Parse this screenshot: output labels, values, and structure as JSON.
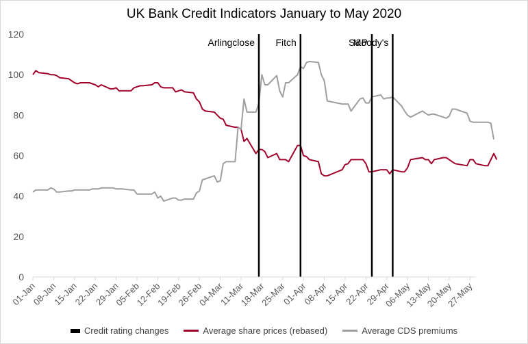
{
  "chart_data": {
    "type": "line",
    "title": "UK Bank Credit Indicators January to May 2020",
    "ylim": [
      0,
      120
    ],
    "yticks": [
      "0",
      "20",
      "40",
      "60",
      "80",
      "100",
      "120"
    ],
    "x_start": "01-Jan",
    "x_end": "29-May",
    "xticks": [
      "01-Jan",
      "08-Jan",
      "15-Jan",
      "22-Jan",
      "29-Jan",
      "05-Feb",
      "12-Feb",
      "19-Feb",
      "26-Feb",
      "04-Mar",
      "11-Mar",
      "18-Mar",
      "25-Mar",
      "01-Apr",
      "08-Apr",
      "15-Apr",
      "22-Apr",
      "29-Apr",
      "06-May",
      "13-May",
      "20-May",
      "27-May"
    ],
    "grid": false,
    "legend_position": "bottom",
    "events": [
      {
        "label": "Arlingclose",
        "x": "17-Mar"
      },
      {
        "label": "Fitch",
        "x": "31-Mar"
      },
      {
        "label": "S&P",
        "x": "24-Apr"
      },
      {
        "label": "Moody's",
        "x": "01-May"
      }
    ],
    "legend": [
      {
        "name": "Credit rating changes",
        "color": "#000000"
      },
      {
        "name": "Average share prices (rebased)",
        "color": "#a0002a"
      },
      {
        "name": "Average CDS premiums",
        "color": "#9e9e9e"
      }
    ],
    "series": [
      {
        "name": "Average share prices (rebased)",
        "color": "#a0002a",
        "points": [
          [
            "01-Jan",
            100
          ],
          [
            "02-Jan",
            102
          ],
          [
            "03-Jan",
            101
          ],
          [
            "06-Jan",
            100.5
          ],
          [
            "07-Jan",
            100
          ],
          [
            "08-Jan",
            100
          ],
          [
            "09-Jan",
            99.5
          ],
          [
            "10-Jan",
            98.5
          ],
          [
            "13-Jan",
            98
          ],
          [
            "14-Jan",
            97
          ],
          [
            "15-Jan",
            96
          ],
          [
            "16-Jan",
            95.5
          ],
          [
            "17-Jan",
            96
          ],
          [
            "20-Jan",
            96
          ],
          [
            "21-Jan",
            95.5
          ],
          [
            "22-Jan",
            95
          ],
          [
            "23-Jan",
            94
          ],
          [
            "24-Jan",
            95
          ],
          [
            "27-Jan",
            93
          ],
          [
            "28-Jan",
            93
          ],
          [
            "29-Jan",
            93.5
          ],
          [
            "30-Jan",
            92
          ],
          [
            "31-Jan",
            92
          ],
          [
            "03-Feb",
            92
          ],
          [
            "04-Feb",
            93.5
          ],
          [
            "05-Feb",
            94
          ],
          [
            "06-Feb",
            94.5
          ],
          [
            "07-Feb",
            94.5
          ],
          [
            "10-Feb",
            95
          ],
          [
            "11-Feb",
            96
          ],
          [
            "12-Feb",
            96
          ],
          [
            "13-Feb",
            94
          ],
          [
            "14-Feb",
            93.5
          ],
          [
            "17-Feb",
            93.5
          ],
          [
            "18-Feb",
            91.5
          ],
          [
            "19-Feb",
            92
          ],
          [
            "20-Feb",
            92.5
          ],
          [
            "21-Feb",
            91.5
          ],
          [
            "24-Feb",
            91
          ],
          [
            "25-Feb",
            88
          ],
          [
            "26-Feb",
            86.5
          ],
          [
            "27-Feb",
            83
          ],
          [
            "28-Feb",
            82
          ],
          [
            "02-Mar",
            81.5
          ],
          [
            "03-Mar",
            80
          ],
          [
            "04-Mar",
            78.5
          ],
          [
            "05-Mar",
            78
          ],
          [
            "06-Mar",
            75
          ],
          [
            "09-Mar",
            74
          ],
          [
            "10-Mar",
            74
          ],
          [
            "11-Mar",
            73
          ],
          [
            "12-Mar",
            67
          ],
          [
            "13-Mar",
            68.5
          ],
          [
            "16-Mar",
            61
          ],
          [
            "17-Mar",
            63
          ],
          [
            "18-Mar",
            63
          ],
          [
            "19-Mar",
            62
          ],
          [
            "20-Mar",
            59
          ],
          [
            "23-Mar",
            61
          ],
          [
            "24-Mar",
            58
          ],
          [
            "25-Mar",
            58
          ],
          [
            "26-Mar",
            58
          ],
          [
            "27-Mar",
            57
          ],
          [
            "30-Mar",
            65
          ],
          [
            "31-Mar",
            65
          ],
          [
            "01-Apr",
            60
          ],
          [
            "02-Apr",
            59.5
          ],
          [
            "03-Apr",
            58
          ],
          [
            "06-Apr",
            57
          ],
          [
            "07-Apr",
            51
          ],
          [
            "08-Apr",
            50
          ],
          [
            "09-Apr",
            50
          ],
          [
            "14-Apr",
            53
          ],
          [
            "15-Apr",
            55.5
          ],
          [
            "16-Apr",
            56
          ],
          [
            "17-Apr",
            58
          ],
          [
            "20-Apr",
            58
          ],
          [
            "21-Apr",
            58
          ],
          [
            "22-Apr",
            56
          ],
          [
            "23-Apr",
            52
          ],
          [
            "24-Apr",
            52
          ],
          [
            "27-Apr",
            53
          ],
          [
            "28-Apr",
            53
          ],
          [
            "29-Apr",
            53
          ],
          [
            "30-Apr",
            51
          ],
          [
            "01-May",
            53
          ],
          [
            "04-May",
            52
          ],
          [
            "05-May",
            52
          ],
          [
            "06-May",
            54
          ],
          [
            "07-May",
            58
          ],
          [
            "11-May",
            59
          ],
          [
            "12-May",
            58
          ],
          [
            "13-May",
            58
          ],
          [
            "14-May",
            56
          ],
          [
            "15-May",
            58
          ],
          [
            "18-May",
            59
          ],
          [
            "19-May",
            59
          ],
          [
            "20-May",
            58
          ],
          [
            "21-May",
            57
          ],
          [
            "22-May",
            56
          ],
          [
            "26-May",
            55
          ],
          [
            "27-May",
            58
          ],
          [
            "28-May",
            58
          ],
          [
            "29-May",
            56
          ],
          [
            "01-Jun",
            55
          ],
          [
            "02-Jun",
            55
          ],
          [
            "03-Jun",
            58
          ],
          [
            "04-Jun",
            61
          ],
          [
            "05-Jun",
            58
          ]
        ]
      },
      {
        "name": "Average CDS premiums",
        "color": "#9e9e9e",
        "points": [
          [
            "01-Jan",
            42
          ],
          [
            "02-Jan",
            43
          ],
          [
            "03-Jan",
            43
          ],
          [
            "06-Jan",
            43
          ],
          [
            "07-Jan",
            44
          ],
          [
            "08-Jan",
            43.5
          ],
          [
            "09-Jan",
            42
          ],
          [
            "10-Jan",
            42
          ],
          [
            "13-Jan",
            42.5
          ],
          [
            "14-Jan",
            42.5
          ],
          [
            "15-Jan",
            43
          ],
          [
            "16-Jan",
            43
          ],
          [
            "17-Jan",
            43
          ],
          [
            "20-Jan",
            43
          ],
          [
            "21-Jan",
            43.5
          ],
          [
            "22-Jan",
            43.5
          ],
          [
            "23-Jan",
            43.5
          ],
          [
            "24-Jan",
            44
          ],
          [
            "27-Jan",
            44
          ],
          [
            "28-Jan",
            44
          ],
          [
            "29-Jan",
            43.5
          ],
          [
            "30-Jan",
            43.5
          ],
          [
            "31-Jan",
            43.5
          ],
          [
            "03-Feb",
            43
          ],
          [
            "04-Feb",
            43
          ],
          [
            "05-Feb",
            41
          ],
          [
            "06-Feb",
            41
          ],
          [
            "07-Feb",
            41
          ],
          [
            "10-Feb",
            41
          ],
          [
            "11-Feb",
            42
          ],
          [
            "12-Feb",
            39
          ],
          [
            "13-Feb",
            40
          ],
          [
            "14-Feb",
            37.5
          ],
          [
            "17-Feb",
            39
          ],
          [
            "18-Feb",
            39
          ],
          [
            "19-Feb",
            38
          ],
          [
            "20-Feb",
            38
          ],
          [
            "21-Feb",
            38.5
          ],
          [
            "24-Feb",
            38.5
          ],
          [
            "25-Feb",
            41.5
          ],
          [
            "26-Feb",
            42.5
          ],
          [
            "27-Feb",
            48
          ],
          [
            "28-Feb",
            48.5
          ],
          [
            "02-Mar",
            50
          ],
          [
            "03-Mar",
            47
          ],
          [
            "04-Mar",
            47.5
          ],
          [
            "05-Mar",
            56
          ],
          [
            "06-Mar",
            57
          ],
          [
            "09-Mar",
            57
          ],
          [
            "10-Mar",
            74
          ],
          [
            "11-Mar",
            73
          ],
          [
            "12-Mar",
            88
          ],
          [
            "13-Mar",
            81.5
          ],
          [
            "16-Mar",
            81.5
          ],
          [
            "17-Mar",
            86
          ],
          [
            "18-Mar",
            100
          ],
          [
            "19-Mar",
            95
          ],
          [
            "20-Mar",
            95
          ],
          [
            "23-Mar",
            99.5
          ],
          [
            "24-Mar",
            92
          ],
          [
            "25-Mar",
            89
          ],
          [
            "26-Mar",
            96
          ],
          [
            "27-Mar",
            96
          ],
          [
            "30-Mar",
            100
          ],
          [
            "31-Mar",
            104
          ],
          [
            "01-Apr",
            103
          ],
          [
            "02-Apr",
            106
          ],
          [
            "03-Apr",
            106.5
          ],
          [
            "06-Apr",
            106
          ],
          [
            "07-Apr",
            100
          ],
          [
            "08-Apr",
            97
          ],
          [
            "09-Apr",
            87
          ],
          [
            "14-Apr",
            85.5
          ],
          [
            "15-Apr",
            85.5
          ],
          [
            "16-Apr",
            85.5
          ],
          [
            "17-Apr",
            82
          ],
          [
            "20-Apr",
            88
          ],
          [
            "21-Apr",
            88.5
          ],
          [
            "22-Apr",
            86
          ],
          [
            "23-Apr",
            86
          ],
          [
            "24-Apr",
            89
          ],
          [
            "27-Apr",
            90
          ],
          [
            "28-Apr",
            88
          ],
          [
            "29-Apr",
            88.5
          ],
          [
            "30-Apr",
            88.5
          ],
          [
            "01-May",
            89
          ],
          [
            "04-May",
            84.5
          ],
          [
            "05-May",
            82
          ],
          [
            "06-May",
            80
          ],
          [
            "07-May",
            79
          ],
          [
            "11-May",
            82
          ],
          [
            "12-May",
            81
          ],
          [
            "13-May",
            80
          ],
          [
            "14-May",
            80.5
          ],
          [
            "15-May",
            80.5
          ],
          [
            "18-May",
            79
          ],
          [
            "19-May",
            78.5
          ],
          [
            "20-May",
            79.5
          ],
          [
            "21-May",
            83
          ],
          [
            "22-May",
            83
          ],
          [
            "26-May",
            81
          ],
          [
            "27-May",
            77
          ],
          [
            "28-May",
            76.5
          ],
          [
            "29-May",
            76.5
          ],
          [
            "01-Jun",
            76.5
          ],
          [
            "02-Jun",
            76.5
          ],
          [
            "03-Jun",
            76
          ],
          [
            "04-Jun",
            68
          ]
        ]
      }
    ]
  }
}
